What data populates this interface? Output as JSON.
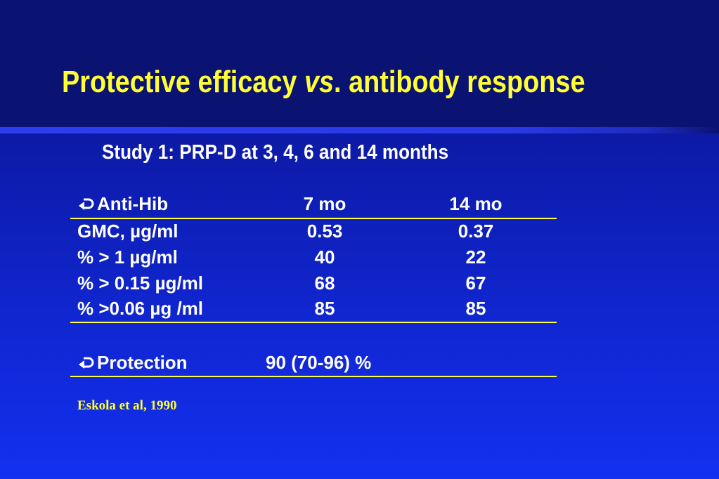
{
  "title": {
    "prefix": "Protective efficacy ",
    "italic": "vs",
    "suffix": ". antibody response"
  },
  "subtitle": "Study 1: PRP-D at 3, 4, 6 and 14 months",
  "table": {
    "header": {
      "label": "Anti-Hib",
      "col1": "7 mo",
      "col2": "14 mo"
    },
    "rows": [
      {
        "label": "GMC, µg/ml",
        "col1": "0.53",
        "col2": "0.37"
      },
      {
        "label": "% > 1 µg/ml",
        "col1": "40",
        "col2": "22"
      },
      {
        "label": "% > 0.15 µg/ml",
        "col1": "68",
        "col2": "67"
      },
      {
        "label": "% >0.06 µg /ml",
        "col1": "85",
        "col2": "85"
      }
    ],
    "protection": {
      "label": "Protection",
      "value": "90 (70-96) %"
    }
  },
  "citation": "Eskola et al, 1990",
  "colors": {
    "title": "#ffff33",
    "text": "#ffffff",
    "rule": "#ffff33",
    "background": "#1026d0"
  },
  "icons": {
    "bullet": "curved-arrow-icon"
  }
}
